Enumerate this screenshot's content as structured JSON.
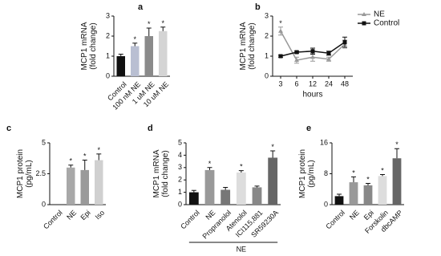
{
  "chart_data": [
    {
      "type": "bar",
      "title": "a",
      "ylabel": [
        "MCP1 mRNA",
        "(fold change)"
      ],
      "categories": [
        "Control",
        "100 nM NE",
        "1 uM NE",
        "10 uM NE"
      ],
      "values": [
        1.0,
        1.5,
        2.0,
        2.25
      ],
      "errors": [
        0.1,
        0.15,
        0.4,
        0.2
      ],
      "colors": [
        "#111111",
        "#b9bfd2",
        "#8a8a8a",
        "#d4d4d4"
      ],
      "sig": [
        null,
        "*",
        "*",
        "*"
      ],
      "ylim": [
        0,
        3
      ],
      "yticks": [
        0,
        1,
        2,
        3
      ]
    },
    {
      "type": "line",
      "title": "b",
      "ylabel": [
        "MCP1 mRNA",
        "(fold change)"
      ],
      "xlabel": "hours",
      "categories": [
        "3",
        "6",
        "12",
        "24",
        "48"
      ],
      "series": [
        {
          "name": "NE",
          "color": "#999999",
          "values": [
            2.25,
            0.8,
            0.95,
            0.85,
            1.6
          ],
          "errors": [
            0.2,
            0.15,
            0.2,
            0.1,
            0.2
          ],
          "sig": [
            "*",
            null,
            null,
            null,
            null
          ]
        },
        {
          "name": "Control",
          "color": "#111111",
          "values": [
            1.0,
            1.2,
            1.25,
            1.15,
            1.7
          ],
          "errors": [
            0.05,
            0.05,
            0.15,
            0.1,
            0.25
          ]
        }
      ],
      "ylim": [
        0,
        3
      ],
      "yticks": [
        0,
        1,
        2,
        3
      ]
    },
    {
      "type": "bar",
      "title": "c",
      "ylabel": [
        "MCP1 protein",
        "(pg/mL)"
      ],
      "categories": [
        "Control",
        "NE",
        "Epi",
        "Iso"
      ],
      "values": [
        0,
        3.0,
        2.8,
        3.6
      ],
      "errors": [
        0,
        0.2,
        0.8,
        0.5
      ],
      "colors": [
        "#111111",
        "#a8a8a8",
        "#9a9a9a",
        "#d0d0d0"
      ],
      "sig": [
        null,
        "*",
        "*",
        "*"
      ],
      "ylim": [
        0,
        5
      ],
      "yticks": [
        0,
        2.5,
        5
      ]
    },
    {
      "type": "bar",
      "title": "d",
      "ylabel": [
        "MCP1 mRNA",
        "(fold change)"
      ],
      "categories": [
        "Control",
        "NE",
        "Propranolol",
        "Atenolol",
        "ICI115,881",
        "SR59230A"
      ],
      "values": [
        1.0,
        2.8,
        1.2,
        2.6,
        1.4,
        3.8
      ],
      "errors": [
        0.15,
        0.2,
        0.2,
        0.15,
        0.1,
        0.55
      ],
      "colors": [
        "#111111",
        "#999999",
        "#777777",
        "#dddddd",
        "#888888",
        "#666666"
      ],
      "sig": [
        null,
        "*",
        null,
        "*",
        null,
        "*"
      ],
      "bracket_label": "NE",
      "ylim": [
        0,
        5
      ],
      "yticks": [
        0,
        1,
        2,
        3,
        4,
        5
      ]
    },
    {
      "type": "bar",
      "title": "e",
      "ylabel": [
        "MCP1 protein",
        "(pg/mL)"
      ],
      "categories": [
        "Control",
        "NE",
        "Epi",
        "Forskolin",
        "dbcAMP"
      ],
      "values": [
        2.2,
        5.8,
        5.0,
        7.4,
        12.0
      ],
      "errors": [
        0.5,
        1.4,
        0.5,
        0.4,
        2.5
      ],
      "colors": [
        "#111111",
        "#999999",
        "#888888",
        "#dddddd",
        "#666666"
      ],
      "sig": [
        null,
        "*",
        "*",
        "*",
        "*"
      ],
      "ylim": [
        0,
        16
      ],
      "yticks": [
        0,
        8,
        16
      ]
    }
  ]
}
